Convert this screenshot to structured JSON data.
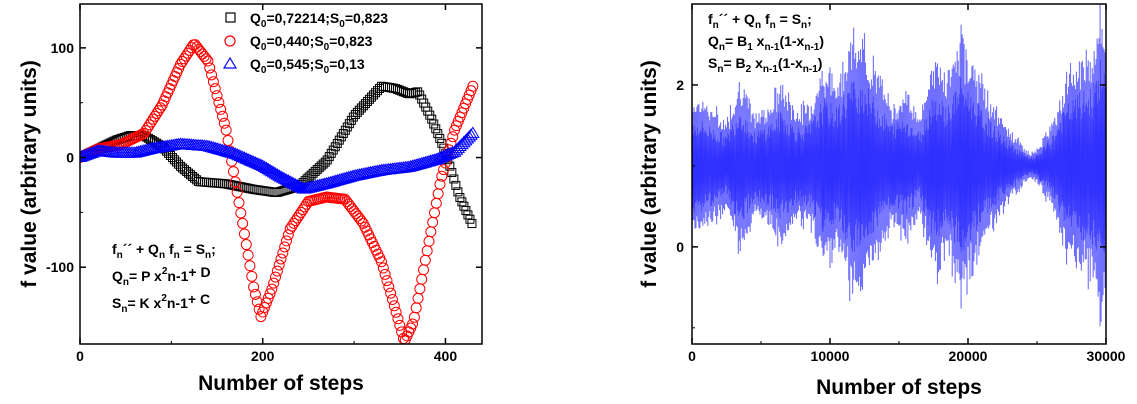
{
  "chart_data": [
    {
      "type": "scatter",
      "xlabel": "Number of steps",
      "ylabel": "f value (arbitrary units)",
      "xlim": [
        0,
        440
      ],
      "ylim": [
        -170,
        140
      ],
      "xticks": [
        0,
        200,
        400
      ],
      "yticks": [
        -100,
        0,
        100
      ],
      "legend_position": "top-right",
      "series": [
        {
          "name": "Q0=0,72214;S0=0,823",
          "marker": "square",
          "color": "#000000",
          "label": {
            "q": "0,72214",
            "s": "0,823"
          },
          "points": [
            [
              0,
              0
            ],
            [
              20,
              8
            ],
            [
              40,
              16
            ],
            [
              55,
              20
            ],
            [
              70,
              20
            ],
            [
              90,
              10
            ],
            [
              110,
              -8
            ],
            [
              130,
              -22
            ],
            [
              160,
              -24
            ],
            [
              190,
              -29
            ],
            [
              215,
              -32
            ],
            [
              240,
              -26
            ],
            [
              270,
              -3
            ],
            [
              300,
              38
            ],
            [
              330,
              65
            ],
            [
              345,
              63
            ],
            [
              360,
              58
            ],
            [
              370,
              60
            ],
            [
              385,
              35
            ],
            [
              400,
              5
            ],
            [
              415,
              -35
            ],
            [
              430,
              -62
            ]
          ]
        },
        {
          "name": "Q0=0,440;S0=0,823",
          "marker": "circle",
          "color": "#ff0000",
          "label": {
            "q": "0,440",
            "s": "0,823"
          },
          "points": [
            [
              0,
              0
            ],
            [
              20,
              8
            ],
            [
              45,
              12
            ],
            [
              70,
              22
            ],
            [
              90,
              48
            ],
            [
              110,
              85
            ],
            [
              125,
              104
            ],
            [
              140,
              88
            ],
            [
              160,
              25
            ],
            [
              178,
              -60
            ],
            [
              190,
              -118
            ],
            [
              198,
              -145
            ],
            [
              210,
              -120
            ],
            [
              230,
              -65
            ],
            [
              250,
              -40
            ],
            [
              270,
              -36
            ],
            [
              290,
              -38
            ],
            [
              310,
              -60
            ],
            [
              330,
              -95
            ],
            [
              345,
              -138
            ],
            [
              355,
              -168
            ],
            [
              365,
              -150
            ],
            [
              380,
              -85
            ],
            [
              395,
              -20
            ],
            [
              410,
              25
            ],
            [
              430,
              65
            ]
          ]
        },
        {
          "name": "Q0=0,545;S0=0,13",
          "marker": "triangle",
          "color": "#0000ff",
          "label": {
            "q": "0,545",
            "s": "0,13"
          },
          "points": [
            [
              0,
              0
            ],
            [
              20,
              6
            ],
            [
              40,
              4
            ],
            [
              60,
              4
            ],
            [
              80,
              8
            ],
            [
              110,
              12
            ],
            [
              140,
              10
            ],
            [
              170,
              3
            ],
            [
              200,
              -8
            ],
            [
              220,
              -18
            ],
            [
              245,
              -29
            ],
            [
              270,
              -24
            ],
            [
              300,
              -17
            ],
            [
              330,
              -12
            ],
            [
              360,
              -9
            ],
            [
              390,
              -2
            ],
            [
              410,
              5
            ],
            [
              430,
              22
            ]
          ]
        }
      ],
      "annotation": {
        "line1": [
          "f",
          "n",
          "´´ + Q",
          "n",
          " f",
          "n",
          " = S",
          "n",
          ";"
        ],
        "line2": [
          "Q",
          "n",
          "= P x",
          "2",
          "n-1",
          "+ D"
        ],
        "line3": [
          "S",
          "n",
          "= K x",
          "2",
          "n-1",
          "+ C"
        ]
      }
    },
    {
      "type": "line",
      "xlabel": "Number of steps",
      "ylabel": "f value (arbitrary units)",
      "xlim": [
        0,
        30000
      ],
      "ylim": [
        -1.2,
        3.0
      ],
      "xticks": [
        0,
        10000,
        20000,
        30000
      ],
      "yticks": [
        0,
        2
      ],
      "color": "#1a1aff",
      "fill_color": "#6f6fff",
      "mean": 1.0,
      "envelope": {
        "x": [
          0,
          500,
          1500,
          2500,
          3500,
          4500,
          5500,
          6500,
          7500,
          8500,
          9500,
          10500,
          11500,
          12500,
          13500,
          14500,
          15500,
          16500,
          17500,
          18500,
          19500,
          20500,
          21500,
          22500,
          23500,
          24500,
          25000,
          26000,
          27000,
          28000,
          29000,
          29700,
          30000
        ],
        "amplitude": [
          0.8,
          0.85,
          0.7,
          0.55,
          1.1,
          0.6,
          0.75,
          1.0,
          0.7,
          0.75,
          1.2,
          1.05,
          1.55,
          1.5,
          1.1,
          0.75,
          0.9,
          0.6,
          1.35,
          1.1,
          1.6,
          1.2,
          0.85,
          0.55,
          0.35,
          0.15,
          0.2,
          0.5,
          1.05,
          1.3,
          1.4,
          2.0,
          1.4
        ]
      },
      "annotation": {
        "line1": [
          "f",
          "n",
          "´´ + Q",
          "n",
          " f",
          "n",
          " = S",
          "n",
          ";"
        ],
        "line2": [
          "Q",
          "n",
          "= B",
          "1",
          " x",
          "n-1",
          "(1-x",
          "n-1",
          ")"
        ],
        "line3": [
          "S",
          "n",
          "= B",
          "2",
          " x",
          "n-1",
          "(1-x",
          "n-1",
          ")"
        ]
      }
    }
  ]
}
